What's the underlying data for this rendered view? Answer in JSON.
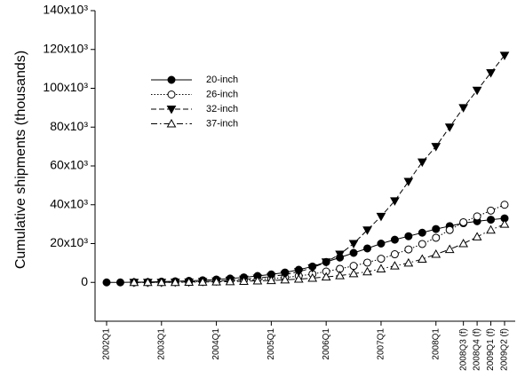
{
  "chart_data": {
    "type": "line",
    "y_label": "Cumulative shipments (thousands)",
    "categories": [
      "2002Q1",
      null,
      null,
      null,
      "2003Q1",
      null,
      null,
      null,
      "2004Q1",
      null,
      null,
      null,
      "2005Q1",
      null,
      null,
      null,
      "2006Q1",
      null,
      null,
      null,
      "2007Q1",
      null,
      null,
      null,
      "2008Q1",
      null,
      "2008Q3 (f)",
      "2008Q4 (f)",
      "2009Q1 (f)",
      "2009Q2 (f)"
    ],
    "series": [
      {
        "name": "20-inch",
        "color": "#000000",
        "linestyle": "solid",
        "marker": "circle",
        "marker_filled": true,
        "values": [
          0,
          0,
          100,
          200,
          400,
          600,
          800,
          1100,
          1500,
          2000,
          2600,
          3300,
          4100,
          5100,
          6500,
          8200,
          10500,
          12800,
          15200,
          17500,
          20000,
          22000,
          23800,
          25600,
          27500,
          29000,
          30500,
          31500,
          32300,
          33000
        ]
      },
      {
        "name": "26-inch",
        "color": "#000000",
        "linestyle": "dotted",
        "marker": "circle",
        "marker_filled": false,
        "values": [
          null,
          null,
          0,
          0,
          100,
          200,
          300,
          450,
          650,
          850,
          1100,
          1500,
          1900,
          2500,
          3300,
          4300,
          5600,
          7000,
          8500,
          10200,
          12200,
          14500,
          17000,
          19800,
          23000,
          27000,
          31000,
          34000,
          37000,
          40000
        ]
      },
      {
        "name": "32-inch",
        "color": "#000000",
        "linestyle": "dashed",
        "marker": "triangle-down",
        "marker_filled": true,
        "values": [
          null,
          null,
          0,
          0,
          0,
          100,
          200,
          400,
          700,
          1100,
          1600,
          2200,
          3000,
          4000,
          5500,
          7500,
          10500,
          14500,
          20000,
          27000,
          34000,
          42000,
          52000,
          62000,
          70000,
          80000,
          90000,
          99000,
          108000,
          117000
        ]
      },
      {
        "name": "37-inch",
        "color": "#000000",
        "linestyle": "dashdot",
        "marker": "triangle-up",
        "marker_filled": false,
        "values": [
          null,
          null,
          0,
          0,
          0,
          0,
          100,
          200,
          300,
          400,
          600,
          800,
          1000,
          1300,
          1700,
          2200,
          2800,
          3500,
          4500,
          5500,
          7000,
          8500,
          10000,
          12000,
          14500,
          17000,
          20000,
          23500,
          27000,
          30000
        ]
      }
    ],
    "ylim": [
      -20000,
      140000
    ],
    "yticks": [
      0,
      {
        "value": 20000,
        "label": "20x10³"
      },
      {
        "value": 40000,
        "label": "40x10³"
      },
      {
        "value": 60000,
        "label": "60x10³"
      },
      {
        "value": 80000,
        "label": "80x10³"
      },
      {
        "value": 100000,
        "label": "100x10³"
      },
      {
        "value": 120000,
        "label": "120x10³"
      },
      {
        "value": 140000,
        "label": "140x10³"
      }
    ],
    "grid": false
  }
}
